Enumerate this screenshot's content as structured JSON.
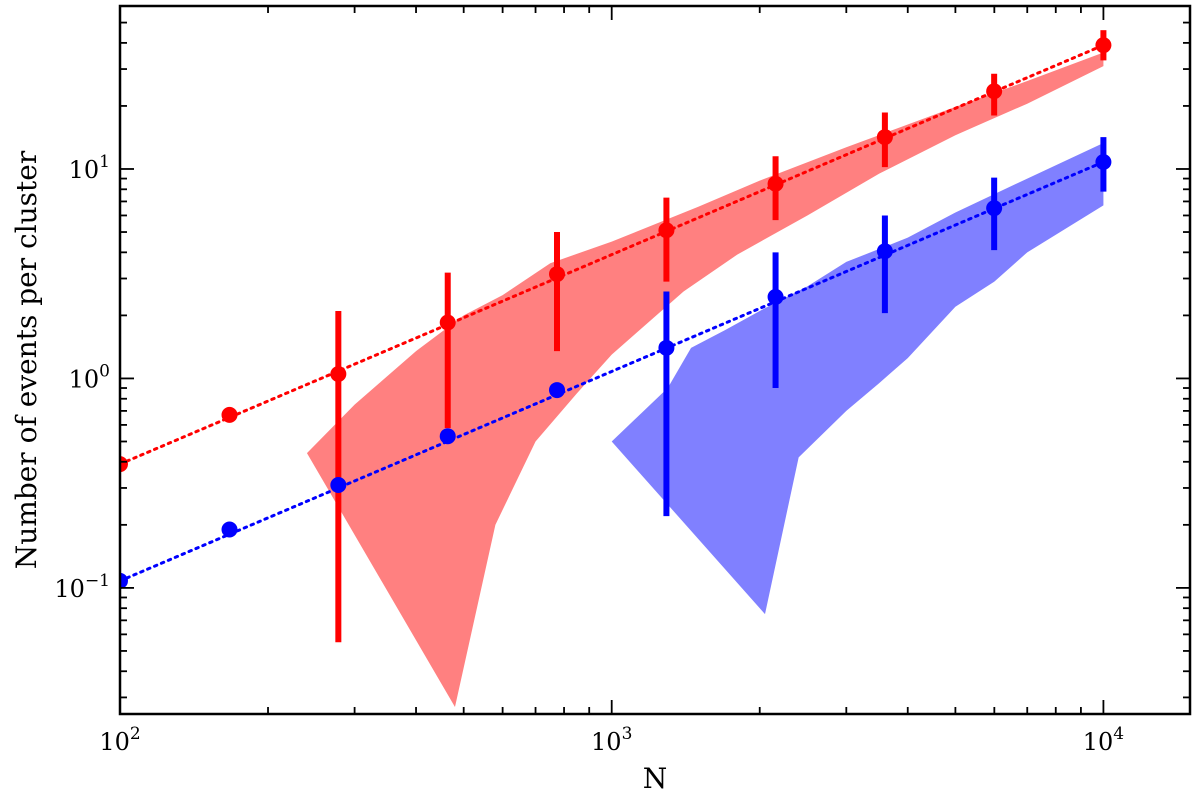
{
  "chart_data": {
    "type": "scatter",
    "xlabel": "N",
    "ylabel": "Number of events per cluster",
    "xscale": "log",
    "yscale": "log",
    "xlim": [
      100,
      15000
    ],
    "ylim": [
      0.025,
      60
    ],
    "grid": false,
    "legend": "none",
    "x_ticks": [
      {
        "value": 100,
        "base": "10",
        "exp": "2"
      },
      {
        "value": 1000,
        "base": "10",
        "exp": "3"
      },
      {
        "value": 10000,
        "base": "10",
        "exp": "4"
      }
    ],
    "y_ticks": [
      {
        "value": 0.1,
        "base": "10",
        "exp": "−1"
      },
      {
        "value": 1,
        "base": "10",
        "exp": "0"
      },
      {
        "value": 10,
        "base": "10",
        "exp": "1"
      }
    ],
    "series": [
      {
        "color": "#ff0000",
        "band_color": "#ff8080",
        "line": {
          "x": [
            100,
            10000
          ],
          "y": [
            0.39,
            39
          ]
        },
        "points": [
          {
            "x": 100,
            "y": 0.39
          },
          {
            "x": 167,
            "y": 0.67
          },
          {
            "x": 278,
            "y": 1.05,
            "ylo": 0.055,
            "yhi": 2.1
          },
          {
            "x": 464,
            "y": 1.85,
            "ylo": 0.58,
            "yhi": 3.2
          },
          {
            "x": 774,
            "y": 3.15,
            "ylo": 1.35,
            "yhi": 5.0
          },
          {
            "x": 1292,
            "y": 5.1,
            "ylo": 2.9,
            "yhi": 7.3
          },
          {
            "x": 2154,
            "y": 8.5,
            "ylo": 5.7,
            "yhi": 11.5
          },
          {
            "x": 3594,
            "y": 14.2,
            "ylo": 10.2,
            "yhi": 18.6
          },
          {
            "x": 5995,
            "y": 23.5,
            "ylo": 18.0,
            "yhi": 28.5
          },
          {
            "x": 10000,
            "y": 39.0,
            "ylo": 33.0,
            "yhi": 46.0
          }
        ],
        "band": {
          "upper": [
            [
              240,
              0.44
            ],
            [
              300,
              0.75
            ],
            [
              400,
              1.35
            ],
            [
              500,
              2.0
            ],
            [
              600,
              2.5
            ],
            [
              750,
              3.55
            ],
            [
              1000,
              4.5
            ],
            [
              1500,
              6.6
            ],
            [
              2000,
              8.8
            ],
            [
              3000,
              12.7
            ],
            [
              5000,
              19.8
            ],
            [
              7000,
              26.3
            ],
            [
              10000,
              36.0
            ]
          ],
          "lower": [
            [
              240,
              0.44
            ],
            [
              480,
              0.027
            ],
            [
              580,
              0.2
            ],
            [
              700,
              0.5
            ],
            [
              850,
              0.85
            ],
            [
              1000,
              1.3
            ],
            [
              1400,
              2.6
            ],
            [
              1800,
              3.9
            ],
            [
              2500,
              6.0
            ],
            [
              3500,
              9.5
            ],
            [
              5000,
              14.5
            ],
            [
              7000,
              20.5
            ],
            [
              10000,
              31.0
            ]
          ]
        }
      },
      {
        "color": "#0000ff",
        "band_color": "#8080ff",
        "line": {
          "x": [
            100,
            10000
          ],
          "y": [
            0.108,
            10.8
          ]
        },
        "points": [
          {
            "x": 100,
            "y": 0.108
          },
          {
            "x": 167,
            "y": 0.19
          },
          {
            "x": 278,
            "y": 0.31,
            "ylo": 0.0,
            "yhi": 0.0,
            "noerr": true
          },
          {
            "x": 464,
            "y": 0.53
          },
          {
            "x": 774,
            "y": 0.88
          },
          {
            "x": 1292,
            "y": 1.4,
            "ylo": 0.22,
            "yhi": 2.6
          },
          {
            "x": 2154,
            "y": 2.45,
            "ylo": 0.9,
            "yhi": 4.0
          },
          {
            "x": 3594,
            "y": 4.05,
            "ylo": 2.05,
            "yhi": 6.0
          },
          {
            "x": 5995,
            "y": 6.5,
            "ylo": 4.1,
            "yhi": 9.1
          },
          {
            "x": 10000,
            "y": 10.8,
            "ylo": 7.8,
            "yhi": 14.2
          }
        ],
        "band": {
          "upper": [
            [
              1000,
              0.5
            ],
            [
              1300,
              0.9
            ],
            [
              1450,
              1.4
            ],
            [
              1700,
              1.7
            ],
            [
              2000,
              2.1
            ],
            [
              2500,
              2.75
            ],
            [
              3000,
              3.6
            ],
            [
              4000,
              4.7
            ],
            [
              5000,
              6.2
            ],
            [
              7000,
              9.0
            ],
            [
              10000,
              13.3
            ]
          ],
          "lower": [
            [
              1000,
              0.5
            ],
            [
              2050,
              0.075
            ],
            [
              2400,
              0.42
            ],
            [
              3000,
              0.7
            ],
            [
              3500,
              0.95
            ],
            [
              4000,
              1.25
            ],
            [
              5000,
              2.2
            ],
            [
              6000,
              2.9
            ],
            [
              7000,
              4.0
            ],
            [
              10000,
              6.7
            ]
          ]
        }
      }
    ]
  }
}
